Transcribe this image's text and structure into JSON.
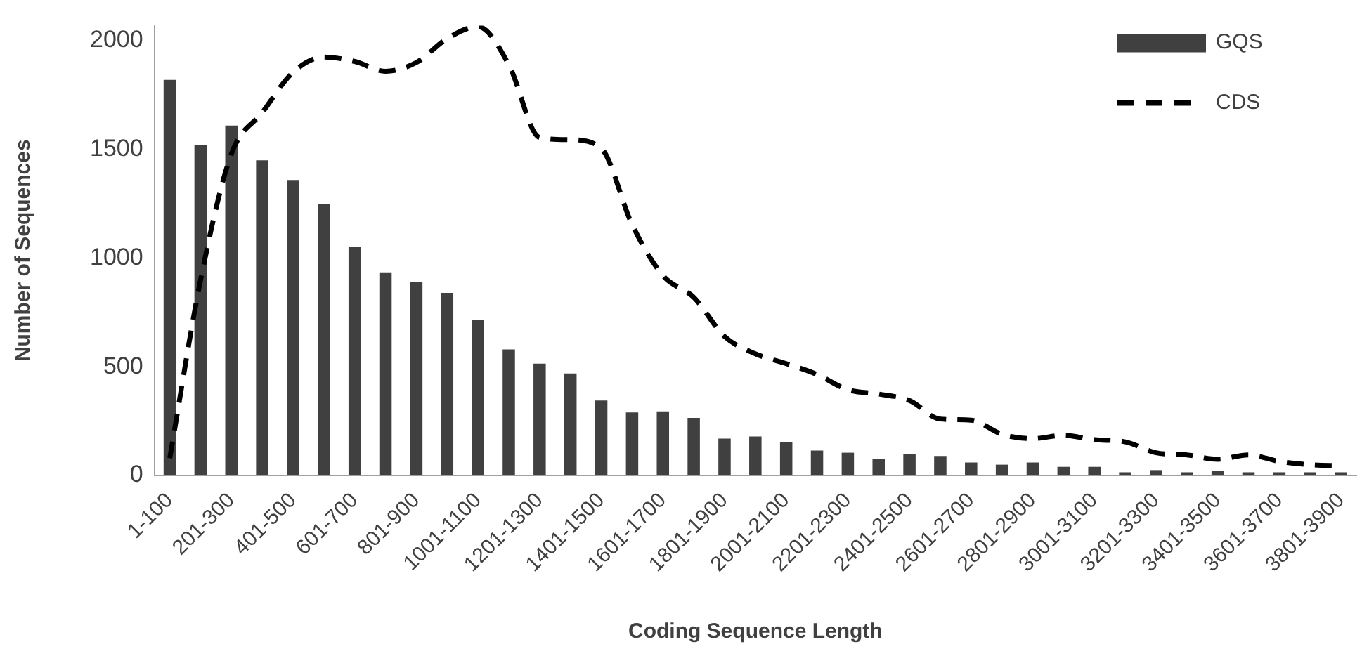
{
  "chart_data": {
    "type": "bar",
    "xlabel": "Coding Sequence Length",
    "ylabel": "Number of Sequences",
    "categories": [
      "1-100",
      null,
      "201-300",
      null,
      "401-500",
      null,
      "601-700",
      null,
      "801-900",
      null,
      "1001-1100",
      null,
      "1201-1300",
      null,
      "1401-1500",
      null,
      "1601-1700",
      null,
      "1801-1900",
      null,
      "2001-2100",
      null,
      "2201-2300",
      null,
      "2401-2500",
      null,
      "2601-2700",
      null,
      "2801-2900",
      null,
      "3001-3100",
      null,
      "3201-3300",
      null,
      "3401-3500",
      null,
      "3601-3700",
      null,
      "3801-3900"
    ],
    "series": [
      {
        "name": "GQS",
        "color": "#404040",
        "values": [
          1820,
          1520,
          1610,
          1450,
          1360,
          1250,
          1050,
          935,
          890,
          840,
          715,
          580,
          515,
          470,
          345,
          290,
          295,
          265,
          170,
          180,
          155,
          115,
          105,
          75,
          100,
          90,
          60,
          50,
          60,
          40,
          40,
          15,
          25,
          15,
          20,
          15,
          15,
          15,
          15
        ]
      },
      {
        "name": "CDS",
        "type": "line",
        "color": "#000000",
        "line_style": "dashed",
        "marker": "none",
        "values": [
          80,
          900,
          1480,
          1670,
          1855,
          1925,
          1905,
          1860,
          1900,
          2010,
          2065,
          1890,
          1555,
          1545,
          1505,
          1155,
          920,
          820,
          640,
          560,
          515,
          465,
          395,
          375,
          345,
          260,
          255,
          190,
          170,
          185,
          165,
          155,
          105,
          95,
          75,
          95,
          65,
          50,
          45
        ]
      }
    ],
    "ylim": [
      0,
      2070
    ],
    "yticks": [
      0,
      500,
      1000,
      1500,
      2000
    ],
    "grid": false,
    "legend": "top right"
  }
}
